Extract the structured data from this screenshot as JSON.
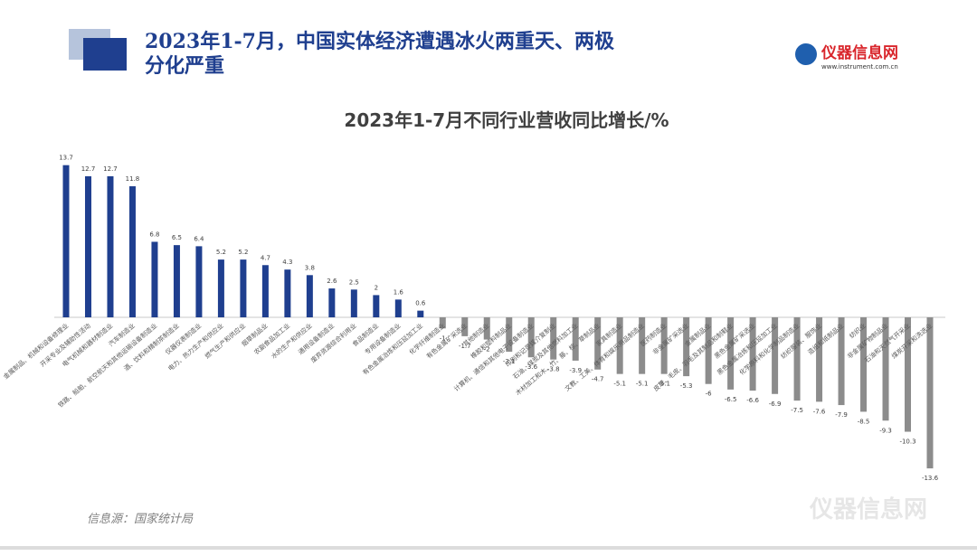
{
  "header": {
    "title": "2023年1-7月，中国实体经济遭遇冰火两重天、两极分化严重",
    "logo": "仪器信息网",
    "logo_url": "www.instrument.com.cn"
  },
  "source": "信息源：国家统计局",
  "watermark": "仪器信息网",
  "chart_data": {
    "type": "bar",
    "title": "2023年1-7月不同行业营收同比增长/%",
    "categories": [
      "金属制品、机械和设备修理业",
      "开采专业及辅助性活动",
      "电气机械和器材制造业",
      "汽车制造业",
      "铁路、船舶、航空航天和其他运输设备制造业",
      "酒、饮料和精制茶制造业",
      "仪器仪表制造业",
      "电力、热力生产和供应业",
      "燃气生产和供应业",
      "烟草制品业",
      "农副食品加工业",
      "水的生产和供应业",
      "通用设备制造业",
      "废弃资源综合利用业",
      "食品制造业",
      "专用设备制造业",
      "有色金属冶炼和压延加工业",
      "化学纤维制造业",
      "有色金属矿采选业",
      "其他制造业",
      "橡胶和塑料制品业",
      "计算机、通信和其他电子设备制造业",
      "印刷和记录媒介复制业",
      "石油、煤炭及其他燃料加工业",
      "木材加工和木、竹、藤、棕、草制品业",
      "家具制造业",
      "文教、工美、体育和娱乐用品制造业",
      "医药制造业",
      "非金属矿采选业",
      "金属制品业",
      "皮革、毛皮、羽毛及其制品和制鞋业",
      "黑色金属矿采选业",
      "黑色金属冶炼和压延加工业",
      "化学原料和化学制品制造业",
      "纺织服装、服饰业",
      "造纸和纸制品业",
      "纺织业",
      "非金属矿物制品业",
      "石油和天然气开采业",
      "煤炭开采和洗选业"
    ],
    "values": [
      13.7,
      12.7,
      12.7,
      11.8,
      6.8,
      6.5,
      6.4,
      5.2,
      5.2,
      4.7,
      4.3,
      3.8,
      2.6,
      2.5,
      2,
      1.6,
      0.6,
      -1,
      -1.7,
      -2,
      -3.1,
      -3.6,
      -3.8,
      -3.9,
      -4.7,
      -5.1,
      -5.1,
      -5.1,
      -5.3,
      -6,
      -6.5,
      -6.6,
      -6.9,
      -7.5,
      -7.6,
      -7.9,
      -8.5,
      -9.3,
      -10.3,
      -13.6
    ],
    "color": "#1f3f8f",
    "negative_color": "#8c8c8c",
    "ylim": [
      -14,
      14
    ]
  }
}
